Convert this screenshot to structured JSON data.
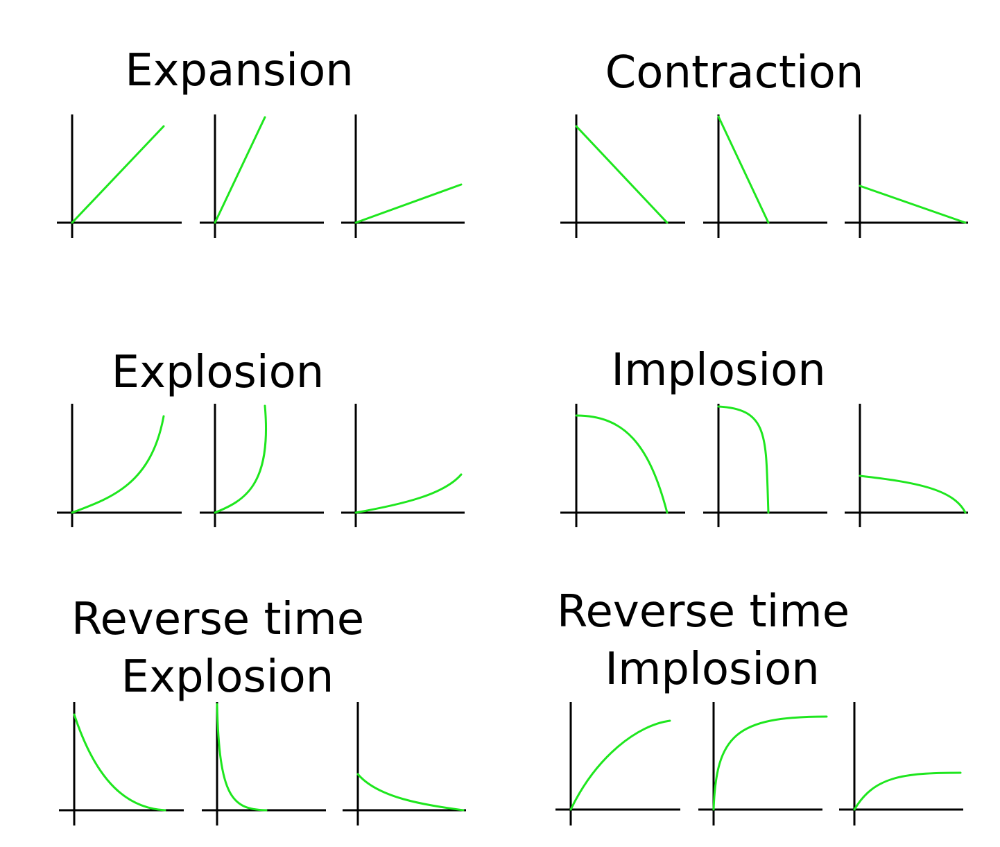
{
  "figure": {
    "curve_color": "#1ee61e",
    "axis_color": "#000000",
    "panels": [
      {
        "id": "expansion",
        "title_lines": [
          "Expansion"
        ],
        "plots": [
          {
            "shape": "linear-increasing",
            "rate": "moderate"
          },
          {
            "shape": "linear-increasing",
            "rate": "fast"
          },
          {
            "shape": "linear-increasing",
            "rate": "slow"
          }
        ]
      },
      {
        "id": "contraction",
        "title_lines": [
          "Contraction"
        ],
        "plots": [
          {
            "shape": "linear-decreasing",
            "rate": "moderate"
          },
          {
            "shape": "linear-decreasing",
            "rate": "fast"
          },
          {
            "shape": "linear-decreasing",
            "rate": "slow"
          }
        ]
      },
      {
        "id": "explosion",
        "title_lines": [
          "Explosion"
        ],
        "plots": [
          {
            "shape": "convex-increasing",
            "rate": "moderate"
          },
          {
            "shape": "convex-increasing",
            "rate": "fast"
          },
          {
            "shape": "convex-increasing",
            "rate": "slow"
          }
        ]
      },
      {
        "id": "implosion",
        "title_lines": [
          "Implosion"
        ],
        "plots": [
          {
            "shape": "concave-decreasing",
            "rate": "moderate"
          },
          {
            "shape": "concave-decreasing",
            "rate": "fast"
          },
          {
            "shape": "concave-decreasing",
            "rate": "slow"
          }
        ]
      },
      {
        "id": "reverse-time-explosion",
        "title_lines": [
          "Reverse time",
          "Explosion"
        ],
        "plots": [
          {
            "shape": "convex-decreasing",
            "rate": "moderate"
          },
          {
            "shape": "convex-decreasing",
            "rate": "fast"
          },
          {
            "shape": "convex-decreasing",
            "rate": "slow"
          }
        ]
      },
      {
        "id": "reverse-time-implosion",
        "title_lines": [
          "Reverse time",
          "Implosion"
        ],
        "plots": [
          {
            "shape": "concave-increasing",
            "rate": "moderate"
          },
          {
            "shape": "concave-increasing",
            "rate": "fast"
          },
          {
            "shape": "concave-increasing",
            "rate": "slow"
          }
        ]
      }
    ]
  }
}
